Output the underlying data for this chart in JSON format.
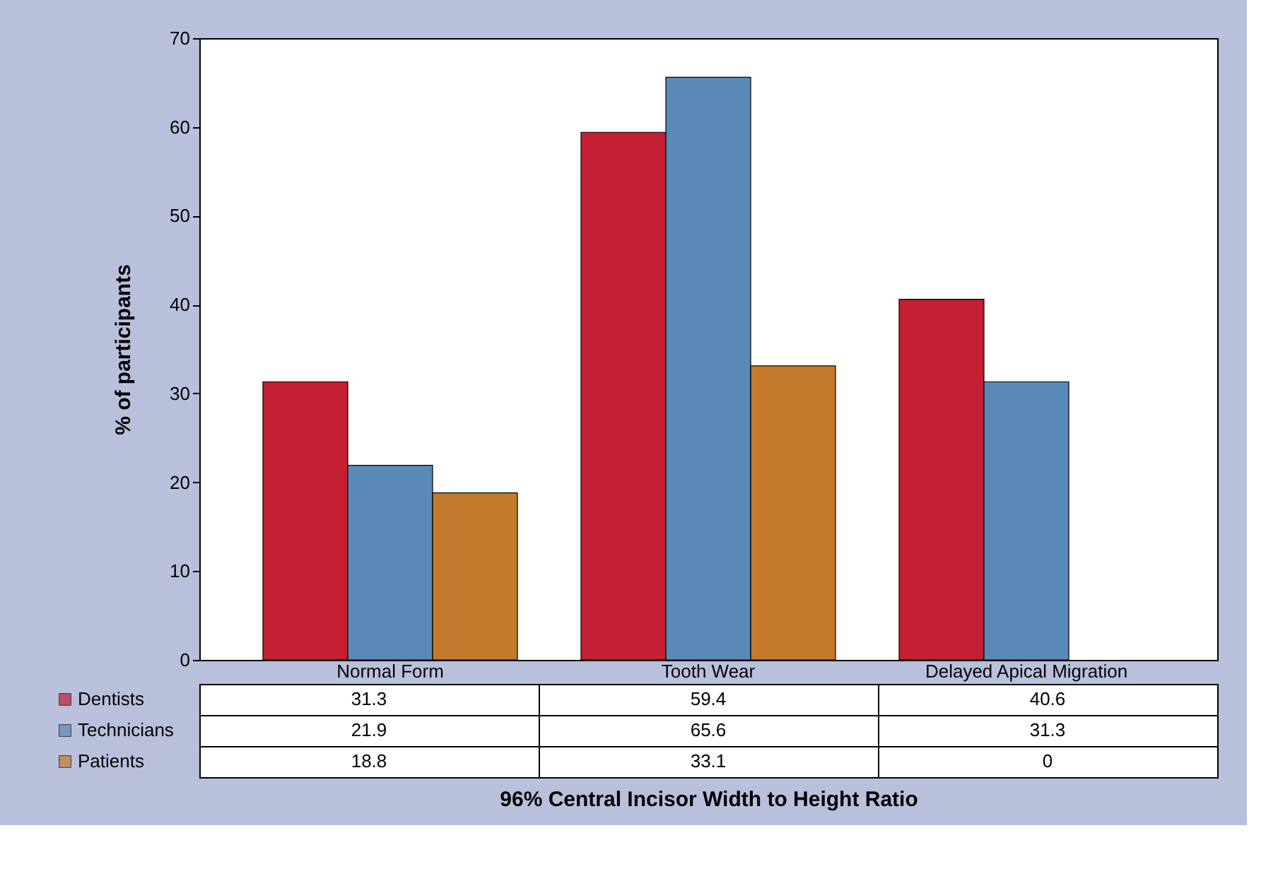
{
  "chart_data": {
    "type": "bar",
    "xlabel": "96% Central Incisor Width to Height Ratio",
    "ylabel": "% of participants",
    "categories": [
      "Normal Form",
      "Tooth Wear",
      "Delayed Apical Migration"
    ],
    "series": [
      {
        "name": "Dentists",
        "color": "#c41f32",
        "values": [
          31.3,
          59.4,
          40.6
        ]
      },
      {
        "name": "Technicians",
        "color": "#5a8ab8",
        "values": [
          21.9,
          65.6,
          31.3
        ]
      },
      {
        "name": "Patients",
        "color": "#c47a2c",
        "values": [
          18.8,
          33.1,
          0
        ]
      }
    ],
    "ylim": [
      0,
      70
    ],
    "yticks": [
      0,
      10,
      20,
      30,
      40,
      50,
      60,
      70
    ],
    "grid": false,
    "legend": "bottom",
    "data_labels": true
  }
}
